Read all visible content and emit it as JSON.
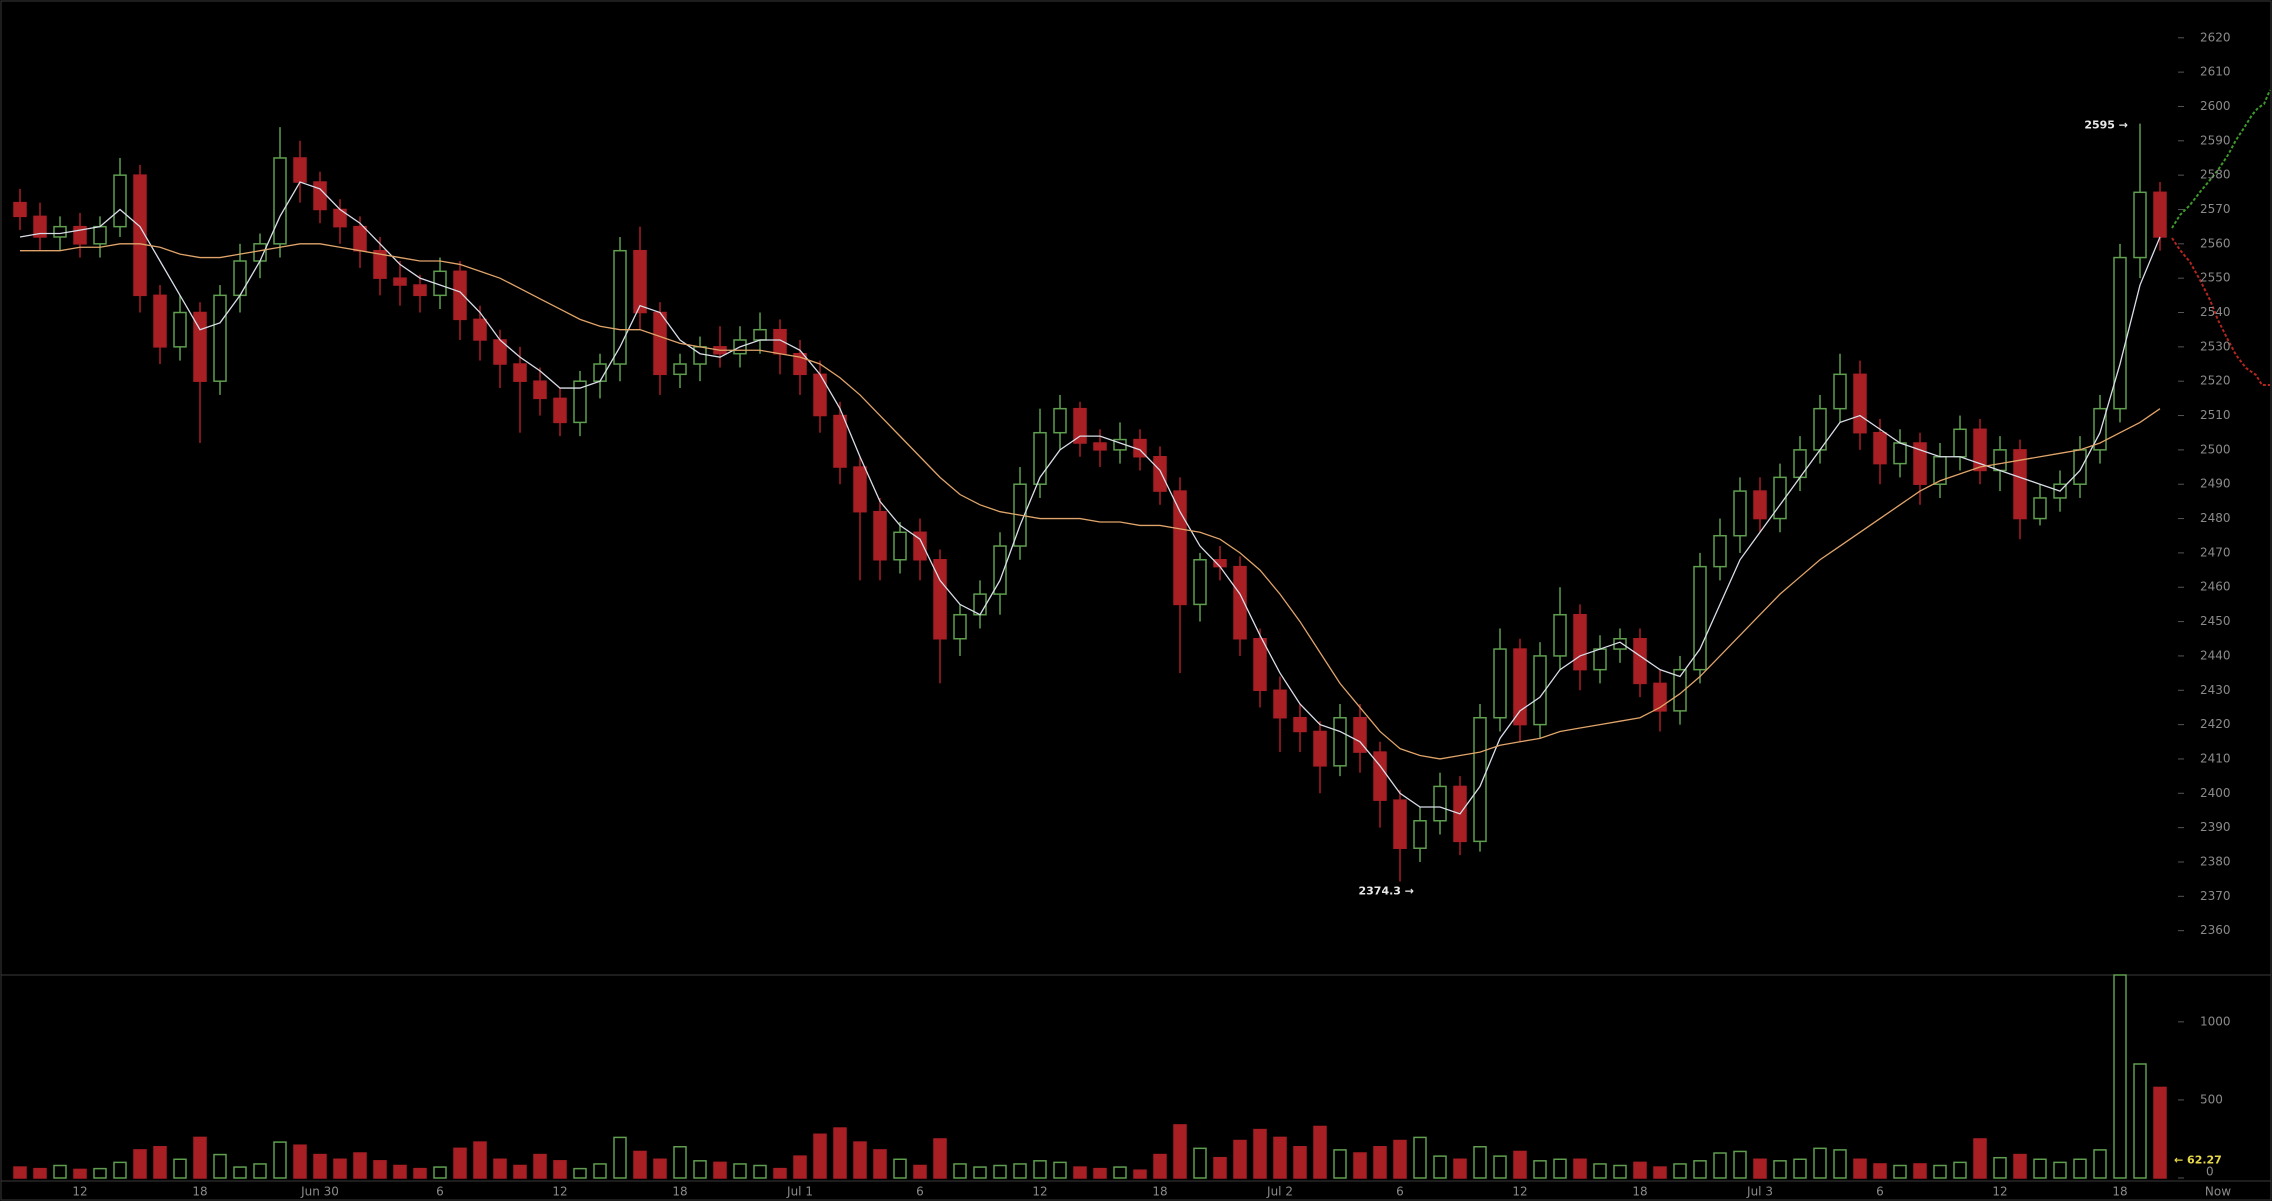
{
  "chart_data": {
    "type": "candlestick",
    "categories": [
      null,
      null,
      null,
      "12",
      null,
      null,
      null,
      null,
      null,
      "18",
      null,
      null,
      null,
      null,
      null,
      "Jun 30",
      null,
      null,
      null,
      null,
      null,
      "6",
      null,
      null,
      null,
      null,
      null,
      "12",
      null,
      null,
      null,
      null,
      null,
      "18",
      null,
      null,
      null,
      null,
      null,
      "Jul 1",
      null,
      null,
      null,
      null,
      null,
      "6",
      null,
      null,
      null,
      null,
      null,
      "12",
      null,
      null,
      null,
      null,
      null,
      "18",
      null,
      null,
      null,
      null,
      null,
      "Jul 2",
      null,
      null,
      null,
      null,
      null,
      "6",
      null,
      null,
      null,
      null,
      null,
      "12",
      null,
      null,
      null,
      null,
      null,
      "18",
      null,
      null,
      null,
      null,
      null,
      "Jul 3",
      null,
      null,
      null,
      null,
      null,
      "6",
      null,
      null,
      null,
      null,
      null,
      "12",
      null,
      null,
      null,
      null,
      null,
      "18",
      null,
      null
    ],
    "x_end_label": "Now",
    "open": [
      2572,
      2568,
      2562,
      2565,
      2560,
      2565,
      2580,
      2545,
      2530,
      2540,
      2520,
      2545,
      2555,
      2560,
      2585,
      2578,
      2570,
      2565,
      2558,
      2550,
      2548,
      2545,
      2552,
      2538,
      2532,
      2525,
      2520,
      2515,
      2508,
      2520,
      2525,
      2558,
      2540,
      2522,
      2525,
      2530,
      2528,
      2532,
      2535,
      2528,
      2522,
      2510,
      2495,
      2482,
      2468,
      2476,
      2468,
      2445,
      2452,
      2458,
      2472,
      2490,
      2505,
      2512,
      2502,
      2500,
      2503,
      2498,
      2488,
      2455,
      2468,
      2466,
      2445,
      2430,
      2422,
      2418,
      2408,
      2422,
      2412,
      2398,
      2384,
      2392,
      2402,
      2386,
      2422,
      2442,
      2420,
      2440,
      2452,
      2436,
      2442,
      2445,
      2432,
      2424,
      2436,
      2466,
      2475,
      2488,
      2480,
      2492,
      2500,
      2512,
      2522,
      2505,
      2496,
      2502,
      2490,
      2498,
      2506,
      2494,
      2500,
      2480,
      2486,
      2490,
      2500,
      2512,
      2556,
      2575
    ],
    "high": [
      2576,
      2572,
      2568,
      2569,
      2568,
      2585,
      2583,
      2548,
      2545,
      2543,
      2548,
      2560,
      2563,
      2594,
      2590,
      2581,
      2573,
      2568,
      2562,
      2555,
      2551,
      2556,
      2555,
      2542,
      2535,
      2530,
      2524,
      2518,
      2523,
      2528,
      2562,
      2565,
      2543,
      2528,
      2533,
      2536,
      2536,
      2540,
      2538,
      2532,
      2526,
      2514,
      2498,
      2486,
      2479,
      2480,
      2471,
      2455,
      2462,
      2476,
      2495,
      2512,
      2516,
      2514,
      2506,
      2508,
      2506,
      2501,
      2492,
      2470,
      2472,
      2469,
      2448,
      2434,
      2426,
      2421,
      2426,
      2426,
      2415,
      2401,
      2396,
      2406,
      2405,
      2426,
      2448,
      2445,
      2444,
      2460,
      2455,
      2446,
      2448,
      2448,
      2436,
      2440,
      2470,
      2480,
      2492,
      2492,
      2496,
      2504,
      2516,
      2528,
      2526,
      2509,
      2506,
      2505,
      2502,
      2510,
      2509,
      2504,
      2503,
      2490,
      2494,
      2504,
      2516,
      2560,
      2595,
      2578
    ],
    "low": [
      2564,
      2558,
      2558,
      2556,
      2556,
      2562,
      2540,
      2525,
      2526,
      2502,
      2516,
      2540,
      2550,
      2556,
      2572,
      2566,
      2560,
      2553,
      2545,
      2542,
      2540,
      2541,
      2532,
      2526,
      2518,
      2505,
      2510,
      2504,
      2504,
      2515,
      2520,
      2535,
      2516,
      2518,
      2520,
      2524,
      2524,
      2528,
      2522,
      2516,
      2505,
      2490,
      2462,
      2462,
      2464,
      2462,
      2432,
      2440,
      2448,
      2452,
      2468,
      2486,
      2500,
      2498,
      2495,
      2496,
      2494,
      2484,
      2435,
      2450,
      2462,
      2440,
      2425,
      2412,
      2412,
      2400,
      2405,
      2406,
      2390,
      2374.3,
      2380,
      2388,
      2382,
      2383,
      2418,
      2415,
      2416,
      2436,
      2430,
      2432,
      2438,
      2428,
      2418,
      2420,
      2432,
      2462,
      2470,
      2476,
      2476,
      2488,
      2496,
      2508,
      2500,
      2490,
      2492,
      2484,
      2486,
      2494,
      2490,
      2488,
      2474,
      2478,
      2482,
      2486,
      2496,
      2508,
      2550,
      2558
    ],
    "close": [
      2568,
      2562,
      2565,
      2560,
      2565,
      2580,
      2545,
      2530,
      2540,
      2520,
      2545,
      2555,
      2560,
      2585,
      2578,
      2570,
      2565,
      2558,
      2550,
      2548,
      2545,
      2552,
      2538,
      2532,
      2525,
      2520,
      2515,
      2508,
      2520,
      2525,
      2558,
      2540,
      2522,
      2525,
      2530,
      2528,
      2532,
      2535,
      2528,
      2522,
      2510,
      2495,
      2482,
      2468,
      2476,
      2468,
      2445,
      2452,
      2458,
      2472,
      2490,
      2505,
      2512,
      2502,
      2500,
      2503,
      2498,
      2488,
      2455,
      2468,
      2466,
      2445,
      2430,
      2422,
      2418,
      2408,
      2422,
      2412,
      2398,
      2384,
      2392,
      2402,
      2386,
      2422,
      2442,
      2420,
      2440,
      2452,
      2436,
      2442,
      2445,
      2432,
      2424,
      2436,
      2466,
      2475,
      2488,
      2480,
      2492,
      2500,
      2512,
      2522,
      2505,
      2496,
      2502,
      2490,
      2498,
      2506,
      2494,
      2500,
      2480,
      2486,
      2490,
      2500,
      2512,
      2556,
      2575,
      2562
    ],
    "up_color": "#5e9e4e",
    "down_color": "#a81f24",
    "ylim": [
      2350,
      2631
    ],
    "yticks": [
      2360,
      2370,
      2380,
      2390,
      2400,
      2410,
      2420,
      2430,
      2440,
      2450,
      2460,
      2470,
      2480,
      2490,
      2500,
      2510,
      2520,
      2530,
      2540,
      2550,
      2560,
      2570,
      2580,
      2590,
      2600,
      2610,
      2620
    ],
    "moving_averages": [
      {
        "color": "#d8dde8",
        "values": [
          2562,
          2563,
          2563,
          2564,
          2565,
          2570,
          2565,
          2555,
          2545,
          2535,
          2537,
          2545,
          2555,
          2568,
          2578,
          2576,
          2570,
          2566,
          2560,
          2554,
          2550,
          2548,
          2546,
          2540,
          2532,
          2527,
          2523,
          2518,
          2518,
          2520,
          2530,
          2542,
          2540,
          2532,
          2528,
          2527,
          2530,
          2532,
          2532,
          2529,
          2522,
          2512,
          2498,
          2485,
          2478,
          2474,
          2462,
          2455,
          2452,
          2462,
          2478,
          2492,
          2500,
          2504,
          2504,
          2502,
          2500,
          2494,
          2482,
          2472,
          2466,
          2458,
          2446,
          2435,
          2426,
          2420,
          2418,
          2415,
          2408,
          2400,
          2396,
          2396,
          2394,
          2402,
          2416,
          2424,
          2428,
          2436,
          2440,
          2442,
          2444,
          2440,
          2436,
          2434,
          2442,
          2455,
          2468,
          2476,
          2484,
          2492,
          2500,
          2508,
          2510,
          2506,
          2502,
          2500,
          2498,
          2498,
          2496,
          2494,
          2492,
          2490,
          2488,
          2494,
          2505,
          2525,
          2548,
          2562
        ]
      },
      {
        "color": "#e0a46a",
        "values": [
          2558,
          2558,
          2558,
          2559,
          2559,
          2560,
          2560,
          2559,
          2557,
          2556,
          2556,
          2557,
          2558,
          2559,
          2560,
          2560,
          2559,
          2558,
          2557,
          2556,
          2555,
          2555,
          2554,
          2552,
          2550,
          2547,
          2544,
          2541,
          2538,
          2536,
          2535,
          2535,
          2533,
          2531,
          2530,
          2529,
          2529,
          2529,
          2528,
          2527,
          2525,
          2521,
          2516,
          2510,
          2504,
          2498,
          2492,
          2487,
          2484,
          2482,
          2481,
          2480,
          2480,
          2480,
          2479,
          2479,
          2478,
          2478,
          2477,
          2476,
          2474,
          2470,
          2465,
          2458,
          2450,
          2441,
          2432,
          2425,
          2418,
          2413,
          2411,
          2410,
          2411,
          2412,
          2414,
          2415,
          2416,
          2418,
          2419,
          2420,
          2421,
          2422,
          2425,
          2429,
          2434,
          2440,
          2446,
          2452,
          2458,
          2463,
          2468,
          2472,
          2476,
          2480,
          2484,
          2488,
          2491,
          2493,
          2495,
          2496,
          2497,
          2498,
          2499,
          2500,
          2502,
          2505,
          2508,
          2512
        ]
      }
    ],
    "volume": {
      "values": [
        70,
        60,
        80,
        55,
        60,
        100,
        180,
        200,
        120,
        260,
        150,
        70,
        90,
        230,
        210,
        150,
        120,
        160,
        110,
        80,
        60,
        70,
        190,
        230,
        120,
        80,
        150,
        110,
        60,
        90,
        260,
        170,
        120,
        200,
        110,
        100,
        90,
        80,
        60,
        140,
        280,
        320,
        230,
        180,
        120,
        80,
        250,
        90,
        70,
        80,
        90,
        110,
        100,
        70,
        60,
        70,
        50,
        150,
        340,
        190,
        130,
        240,
        310,
        260,
        200,
        330,
        180,
        160,
        200,
        240,
        260,
        140,
        120,
        200,
        140,
        170,
        110,
        120,
        120,
        90,
        80,
        100,
        70,
        90,
        110,
        160,
        170,
        120,
        110,
        120,
        190,
        180,
        120,
        90,
        80,
        90,
        80,
        100,
        250,
        130,
        150,
        120,
        100,
        120,
        180,
        1300,
        730,
        580
      ],
      "ylim": [
        0,
        1300
      ],
      "yticks": [
        0,
        500,
        1000
      ]
    },
    "annotations": [
      {
        "label": "2595 →",
        "value": 2595
      },
      {
        "label": "2374.3 →",
        "value": 2374.3
      },
      {
        "label": "← 62.27",
        "value": 62.27,
        "color": "#e8d84a"
      }
    ]
  }
}
